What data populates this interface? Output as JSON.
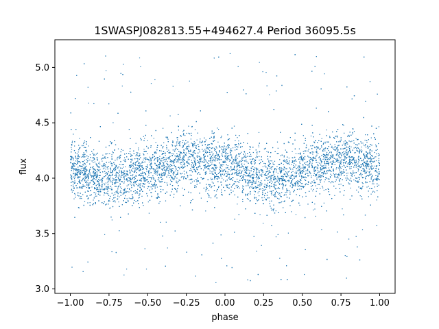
{
  "chart_data": {
    "type": "scatter",
    "title": "1SWASPJ082813.55+494627.4 Period 36095.5s",
    "xlabel": "phase",
    "ylabel": "flux",
    "xlim": [
      -1.1,
      1.1
    ],
    "ylim": [
      2.96,
      5.25
    ],
    "xticks": [
      -1.0,
      -0.75,
      -0.5,
      -0.25,
      0.0,
      0.25,
      0.5,
      0.75,
      1.0
    ],
    "xtick_labels": [
      "−1.00",
      "−0.75",
      "−0.50",
      "−0.25",
      "0.00",
      "0.25",
      "0.50",
      "0.75",
      "1.00"
    ],
    "yticks": [
      3.0,
      3.5,
      4.0,
      4.5,
      5.0
    ],
    "ytick_labels": [
      "3.0",
      "3.5",
      "4.0",
      "4.5",
      "5.0"
    ],
    "grid": false,
    "series_color": "#1f77b4",
    "series": [
      {
        "description": "phase-folded light curve, phase range -1 to 1, dense band around flux 4.0-4.2 with sinusoidal modulation",
        "x_range": [
          -1.0,
          1.0
        ],
        "y_range": [
          3.05,
          5.15
        ],
        "trend": [
          {
            "x": -1.0,
            "y": 4.08
          },
          {
            "x": -0.75,
            "y": 4.0
          },
          {
            "x": -0.5,
            "y": 4.05
          },
          {
            "x": -0.25,
            "y": 4.17
          },
          {
            "x": 0.0,
            "y": 4.12
          },
          {
            "x": 0.25,
            "y": 4.0
          },
          {
            "x": 0.5,
            "y": 4.05
          },
          {
            "x": 0.75,
            "y": 4.17
          },
          {
            "x": 1.0,
            "y": 4.1
          }
        ]
      }
    ]
  }
}
